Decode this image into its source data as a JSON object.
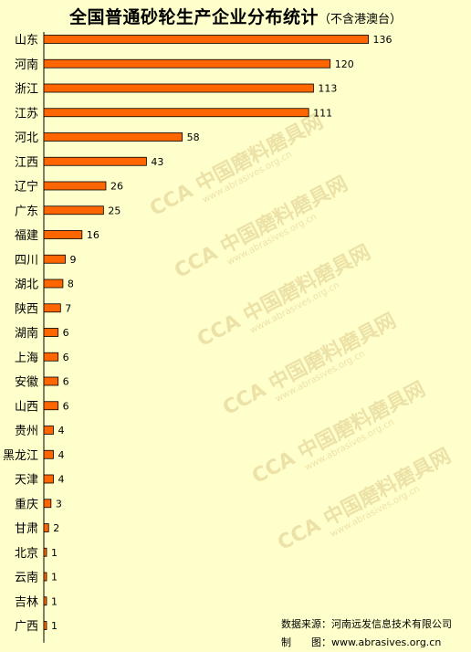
{
  "title": "全国普通砂轮生产企业分布统计",
  "subtitle": "（不含港澳台）",
  "chart_data": {
    "type": "bar",
    "orientation": "horizontal",
    "categories": [
      "山东",
      "河南",
      "浙江",
      "江苏",
      "河北",
      "江西",
      "辽宁",
      "广东",
      "福建",
      "四川",
      "湖北",
      "陕西",
      "湖南",
      "上海",
      "安徽",
      "山西",
      "贵州",
      "黑龙江",
      "天津",
      "重庆",
      "甘肃",
      "北京",
      "云南",
      "吉林",
      "广西"
    ],
    "values": [
      136,
      120,
      113,
      111,
      58,
      43,
      26,
      25,
      16,
      9,
      8,
      7,
      6,
      6,
      6,
      6,
      4,
      4,
      4,
      3,
      2,
      1,
      1,
      1,
      1
    ],
    "bar_color": "#ff6600",
    "bar_stroke": "#000000",
    "xlim": [
      0,
      140
    ],
    "grid": false,
    "legend": "none"
  },
  "footer": {
    "source_label": "数据来源：",
    "source_value": "河南远发信息技术有限公司",
    "maker_label": "制　　图：",
    "maker_value": "www.abrasives.org.cn"
  },
  "watermark": {
    "text": "中国磨料磨具网",
    "url": "www.abrasives.org.cn",
    "logo": "CCA"
  }
}
